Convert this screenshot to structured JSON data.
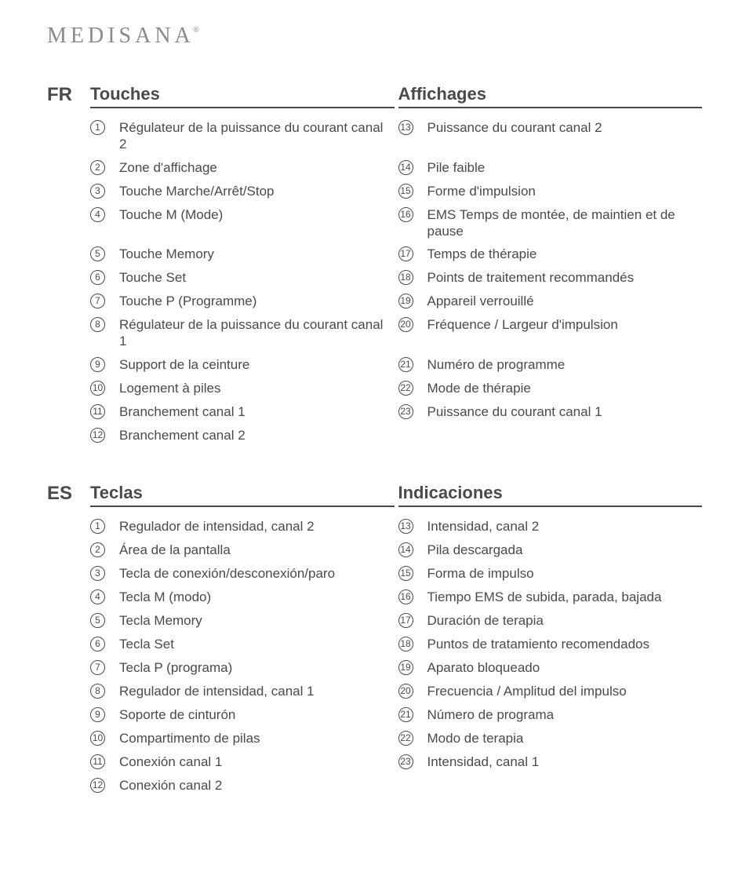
{
  "brand": "MEDISANA",
  "sections": [
    {
      "lang": "FR",
      "left_heading": "Touches",
      "right_heading": "Affichages",
      "rows": [
        {
          "ln": "1",
          "lt": "Régulateur de la puissance du courant canal 2",
          "rn": "13",
          "rt": "Puissance du courant canal 2"
        },
        {
          "ln": "2",
          "lt": "Zone d'affichage",
          "rn": "14",
          "rt": "Pile faible"
        },
        {
          "ln": "3",
          "lt": "Touche Marche/Arrêt/Stop",
          "rn": "15",
          "rt": "Forme d'impulsion"
        },
        {
          "ln": "4",
          "lt": "Touche M (Mode)",
          "rn": "16",
          "rt": "EMS Temps de montée, de maintien et de pause"
        },
        {
          "ln": "5",
          "lt": "Touche Memory",
          "rn": "17",
          "rt": "Temps de thérapie"
        },
        {
          "ln": "6",
          "lt": "Touche Set",
          "rn": "18",
          "rt": "Points de traitement recommandés"
        },
        {
          "ln": "7",
          "lt": "Touche P (Programme)",
          "rn": "19",
          "rt": "Appareil verrouillé"
        },
        {
          "ln": "8",
          "lt": "Régulateur de la puissance du courant canal 1",
          "rn": "20",
          "rt": "Fréquence / Largeur d'impulsion"
        },
        {
          "ln": "9",
          "lt": "Support de la ceinture",
          "rn": "21",
          "rt": "Numéro de programme"
        },
        {
          "ln": "10",
          "lt": "Logement à piles",
          "rn": "22",
          "rt": "Mode de thérapie"
        },
        {
          "ln": "11",
          "lt": "Branchement canal 1",
          "rn": "23",
          "rt": "Puissance du courant canal 1"
        },
        {
          "ln": "12",
          "lt": "Branchement canal 2",
          "rn": "",
          "rt": ""
        }
      ]
    },
    {
      "lang": "ES",
      "left_heading": "Teclas",
      "right_heading": "Indicaciones",
      "rows": [
        {
          "ln": "1",
          "lt": "Regulador de intensidad, canal 2",
          "rn": "13",
          "rt": "Intensidad, canal 2"
        },
        {
          "ln": "2",
          "lt": "Área de la pantalla",
          "rn": "14",
          "rt": "Pila descargada"
        },
        {
          "ln": "3",
          "lt": "Tecla de conexión/desconexión/paro",
          "rn": "15",
          "rt": "Forma de impulso"
        },
        {
          "ln": "4",
          "lt": "Tecla M (modo)",
          "rn": "16",
          "rt": "Tiempo EMS de subida, parada, bajada"
        },
        {
          "ln": "5",
          "lt": "Tecla Memory",
          "rn": "17",
          "rt": "Duración de terapia"
        },
        {
          "ln": "6",
          "lt": "Tecla Set",
          "rn": "18",
          "rt": "Puntos de tratamiento recomendados"
        },
        {
          "ln": "7",
          "lt": "Tecla P (programa)",
          "rn": "19",
          "rt": "Aparato bloqueado"
        },
        {
          "ln": "8",
          "lt": "Regulador de intensidad, canal 1",
          "rn": "20",
          "rt": "Frecuencia / Amplitud del impulso"
        },
        {
          "ln": "9",
          "lt": "Soporte de cinturón",
          "rn": "21",
          "rt": "Número de programa"
        },
        {
          "ln": "10",
          "lt": "Compartimento de pilas",
          "rn": "22",
          "rt": "Modo de terapia"
        },
        {
          "ln": "11",
          "lt": "Conexión canal 1",
          "rn": "23",
          "rt": "Intensidad, canal 1"
        },
        {
          "ln": "12",
          "lt": "Conexión canal 2",
          "rn": "",
          "rt": ""
        }
      ]
    }
  ]
}
